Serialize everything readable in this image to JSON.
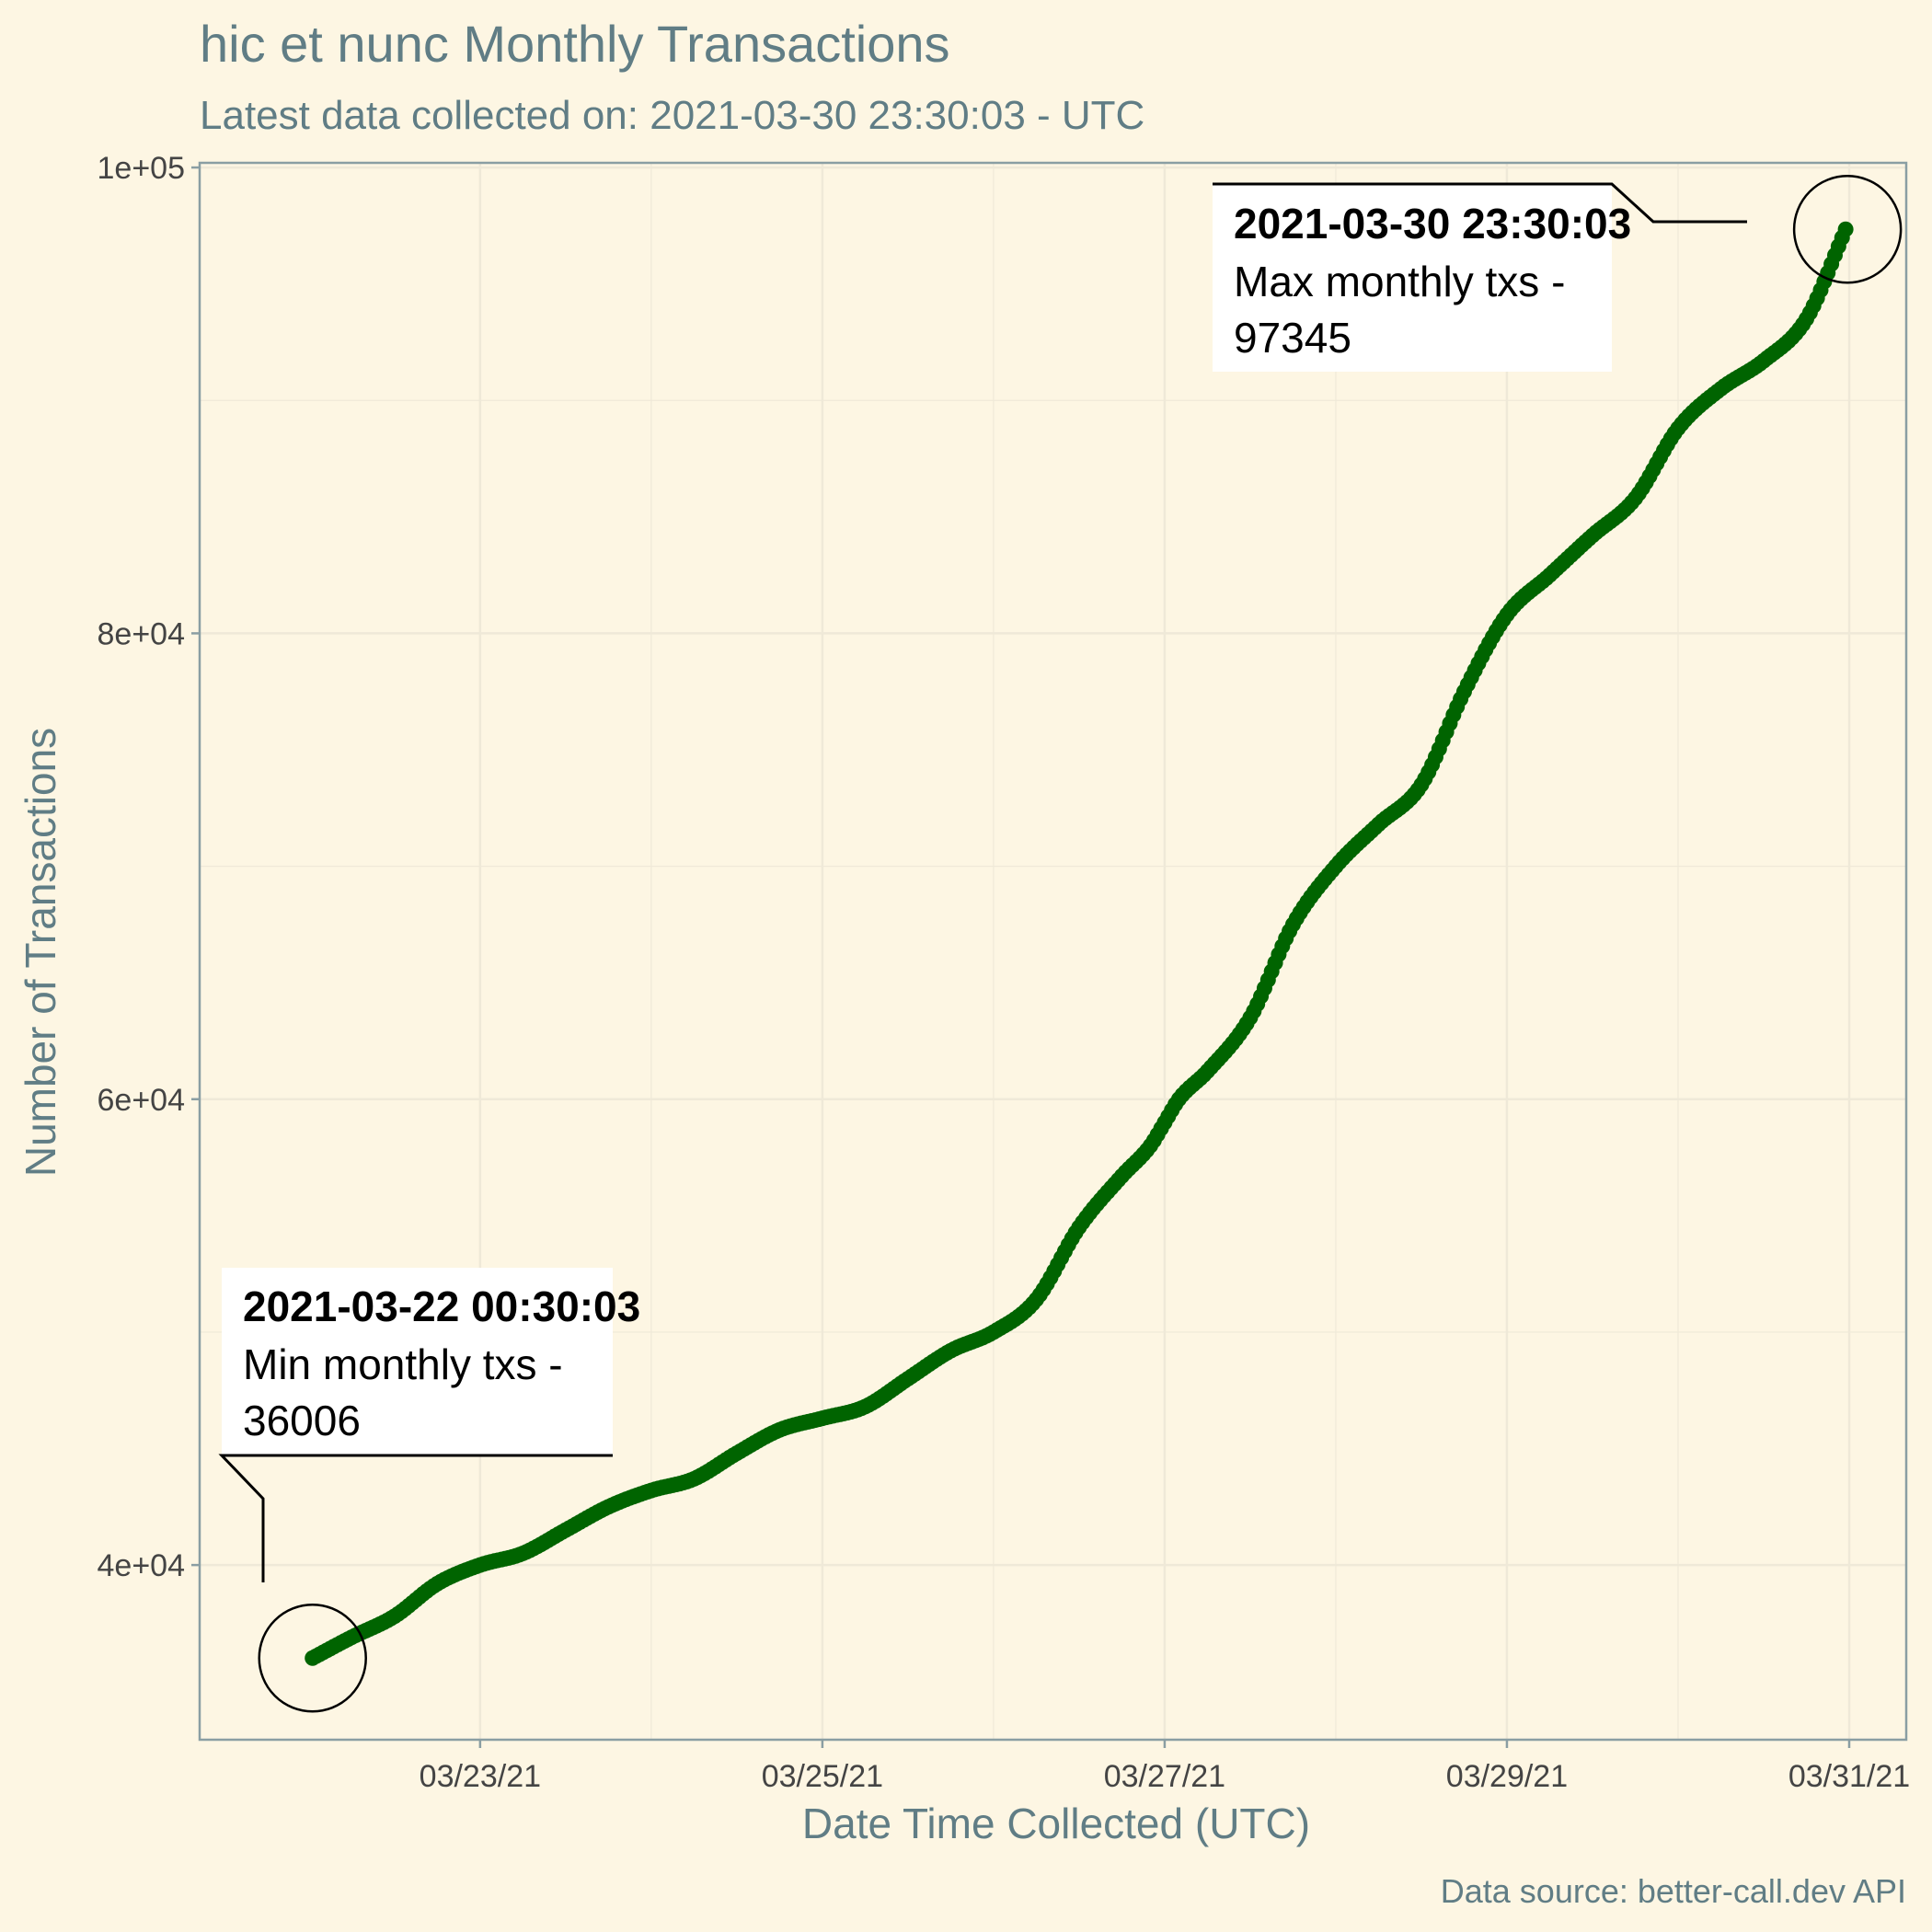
{
  "title": "hic et nunc Monthly Transactions",
  "subtitle": "Latest data collected on: 2021-03-30 23:30:03  - UTC",
  "caption": "Data source: better-call.dev API",
  "colors": {
    "background": "#fdf6e3",
    "title_text": "#607d85",
    "series": "#006400",
    "grid": "#efe9d8",
    "axis": "#8a9ea3",
    "tick_text": "#444444",
    "annotation_box": "#ffffff",
    "annotation_text": "#000000"
  },
  "chart_data": {
    "type": "scatter",
    "title": "hic et nunc Monthly Transactions",
    "subtitle": "Latest data collected on: 2021-03-30 23:30:03  - UTC",
    "xlabel": "Date Time Collected (UTC)",
    "ylabel": "Number of Transactions",
    "x_type": "datetime",
    "xlim": [
      "2021-03-21 08:40",
      "2021-03-31 08:00"
    ],
    "ylim": [
      32500,
      100200
    ],
    "x_ticks": [
      "2021-03-23",
      "2021-03-25",
      "2021-03-27",
      "2021-03-29",
      "2021-03-31"
    ],
    "x_tick_labels": [
      "03/23/21",
      "03/25/21",
      "03/27/21",
      "03/29/21",
      "03/31/21"
    ],
    "y_ticks": [
      40000,
      60000,
      80000,
      100000
    ],
    "y_tick_labels": [
      "4e+04",
      "6e+04",
      "8e+04",
      "1e+05"
    ],
    "grid": true,
    "legend": "none",
    "series": [
      {
        "x": [
          "2021-03-22 00:30",
          "2021-03-22 06:00",
          "2021-03-22 12:00",
          "2021-03-22 18:00",
          "2021-03-23 00:00",
          "2021-03-23 06:00",
          "2021-03-23 12:00",
          "2021-03-23 18:00",
          "2021-03-24 00:00",
          "2021-03-24 06:00",
          "2021-03-24 12:00",
          "2021-03-24 18:00",
          "2021-03-25 00:00",
          "2021-03-25 06:00",
          "2021-03-25 12:00",
          "2021-03-25 18:00",
          "2021-03-26 00:00",
          "2021-03-26 06:00",
          "2021-03-26 12:00",
          "2021-03-26 18:00",
          "2021-03-26 22:00",
          "2021-03-27 00:00",
          "2021-03-27 02:00",
          "2021-03-27 06:00",
          "2021-03-27 12:00",
          "2021-03-27 18:00",
          "2021-03-28 00:00",
          "2021-03-28 06:00",
          "2021-03-28 12:00",
          "2021-03-28 18:00",
          "2021-03-29 00:00",
          "2021-03-29 06:00",
          "2021-03-29 12:00",
          "2021-03-29 18:00",
          "2021-03-30 00:00",
          "2021-03-30 06:00",
          "2021-03-30 12:00",
          "2021-03-30 18:00",
          "2021-03-30 23:30"
        ],
        "y": [
          36006,
          36900,
          37800,
          39200,
          40000,
          40500,
          41500,
          42500,
          43200,
          43700,
          44800,
          45800,
          46300,
          46800,
          48000,
          49200,
          50000,
          51400,
          54500,
          56700,
          58000,
          59000,
          60000,
          61200,
          63500,
          67500,
          70000,
          71800,
          73500,
          77500,
          80800,
          82500,
          84200,
          85800,
          88800,
          90500,
          91700,
          93500,
          97345
        ]
      }
    ],
    "annotations": [
      {
        "kind": "min",
        "time": "2021-03-22 00:30:03",
        "text": "Min monthly txs -",
        "value": "36006",
        "x": "2021-03-22 00:30",
        "y": 36006
      },
      {
        "kind": "max",
        "time": "2021-03-30 23:30:03",
        "text": "Max monthly txs -",
        "value": "97345",
        "x": "2021-03-30 23:30",
        "y": 97345
      }
    ]
  }
}
